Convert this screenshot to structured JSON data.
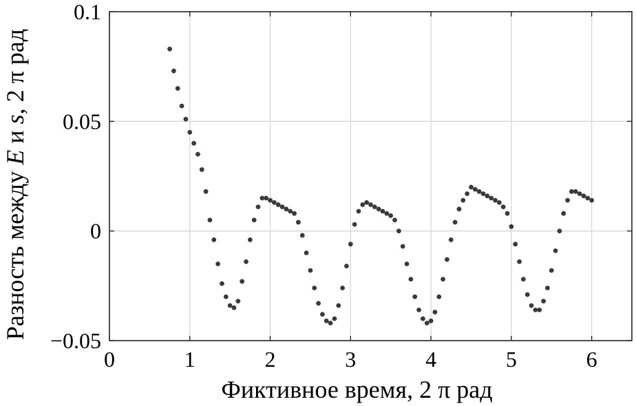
{
  "chart_data": {
    "type": "scatter",
    "title": "",
    "xlabel": "Фиктивное время, 2 π рад",
    "ylabel_parts": [
      "Разность между ",
      "E",
      " и ",
      "s",
      ", 2 π рад"
    ],
    "xlim": [
      0,
      6.5
    ],
    "ylim": [
      -0.05,
      0.1
    ],
    "xticks": [
      0,
      1,
      2,
      3,
      4,
      5,
      6
    ],
    "xtick_labels": [
      "0",
      "1",
      "2",
      "3",
      "4",
      "5",
      "6"
    ],
    "yticks": [
      -0.05,
      0,
      0.05,
      0.1
    ],
    "ytick_labels": [
      "−0.05",
      "0",
      "0.05",
      "0.1"
    ],
    "grid": true,
    "marker_color": "#3a3a3a",
    "series": [
      {
        "x": [
          0.75,
          0.8,
          0.85,
          0.9,
          0.95,
          1.0,
          1.05,
          1.1,
          1.15,
          1.2,
          1.25,
          1.3,
          1.35,
          1.4,
          1.45,
          1.5,
          1.55,
          1.6,
          1.65,
          1.7,
          1.75,
          1.8,
          1.85,
          1.9,
          1.95,
          2.0,
          2.05,
          2.1,
          2.15,
          2.2,
          2.25,
          2.3,
          2.35,
          2.4,
          2.45,
          2.5,
          2.55,
          2.6,
          2.65,
          2.7,
          2.75,
          2.8,
          2.85,
          2.9,
          2.95,
          3.0,
          3.05,
          3.1,
          3.15,
          3.2,
          3.25,
          3.3,
          3.35,
          3.4,
          3.45,
          3.5,
          3.55,
          3.6,
          3.65,
          3.7,
          3.75,
          3.8,
          3.85,
          3.9,
          3.95,
          4.0,
          4.05,
          4.1,
          4.15,
          4.2,
          4.25,
          4.3,
          4.35,
          4.4,
          4.45,
          4.5,
          4.55,
          4.6,
          4.65,
          4.7,
          4.75,
          4.8,
          4.85,
          4.9,
          4.95,
          5.0,
          5.05,
          5.1,
          5.15,
          5.2,
          5.25,
          5.3,
          5.35,
          5.4,
          5.45,
          5.5,
          5.55,
          5.6,
          5.65,
          5.7,
          5.75,
          5.8,
          5.85,
          5.9,
          5.95,
          6.0
        ],
        "y": [
          0.083,
          0.073,
          0.065,
          0.057,
          0.051,
          0.045,
          0.04,
          0.035,
          0.028,
          0.018,
          0.005,
          -0.004,
          -0.015,
          -0.024,
          -0.03,
          -0.034,
          -0.035,
          -0.032,
          -0.023,
          -0.014,
          -0.004,
          0.005,
          0.011,
          0.015,
          0.015,
          0.014,
          0.013,
          0.012,
          0.011,
          0.01,
          0.009,
          0.008,
          0.004,
          -0.002,
          -0.01,
          -0.018,
          -0.026,
          -0.033,
          -0.038,
          -0.041,
          -0.042,
          -0.04,
          -0.034,
          -0.026,
          -0.016,
          -0.006,
          0.003,
          0.009,
          0.012,
          0.013,
          0.012,
          0.011,
          0.01,
          0.009,
          0.008,
          0.007,
          0.005,
          0.0,
          -0.007,
          -0.015,
          -0.022,
          -0.03,
          -0.036,
          -0.04,
          -0.042,
          -0.041,
          -0.037,
          -0.03,
          -0.022,
          -0.013,
          -0.004,
          0.004,
          0.01,
          0.014,
          0.017,
          0.02,
          0.019,
          0.018,
          0.017,
          0.016,
          0.015,
          0.014,
          0.013,
          0.011,
          0.008,
          0.002,
          -0.006,
          -0.014,
          -0.022,
          -0.029,
          -0.034,
          -0.036,
          -0.036,
          -0.032,
          -0.026,
          -0.018,
          -0.009,
          0.0,
          0.008,
          0.014,
          0.018,
          0.018,
          0.017,
          0.016,
          0.015,
          0.014
        ]
      }
    ]
  }
}
